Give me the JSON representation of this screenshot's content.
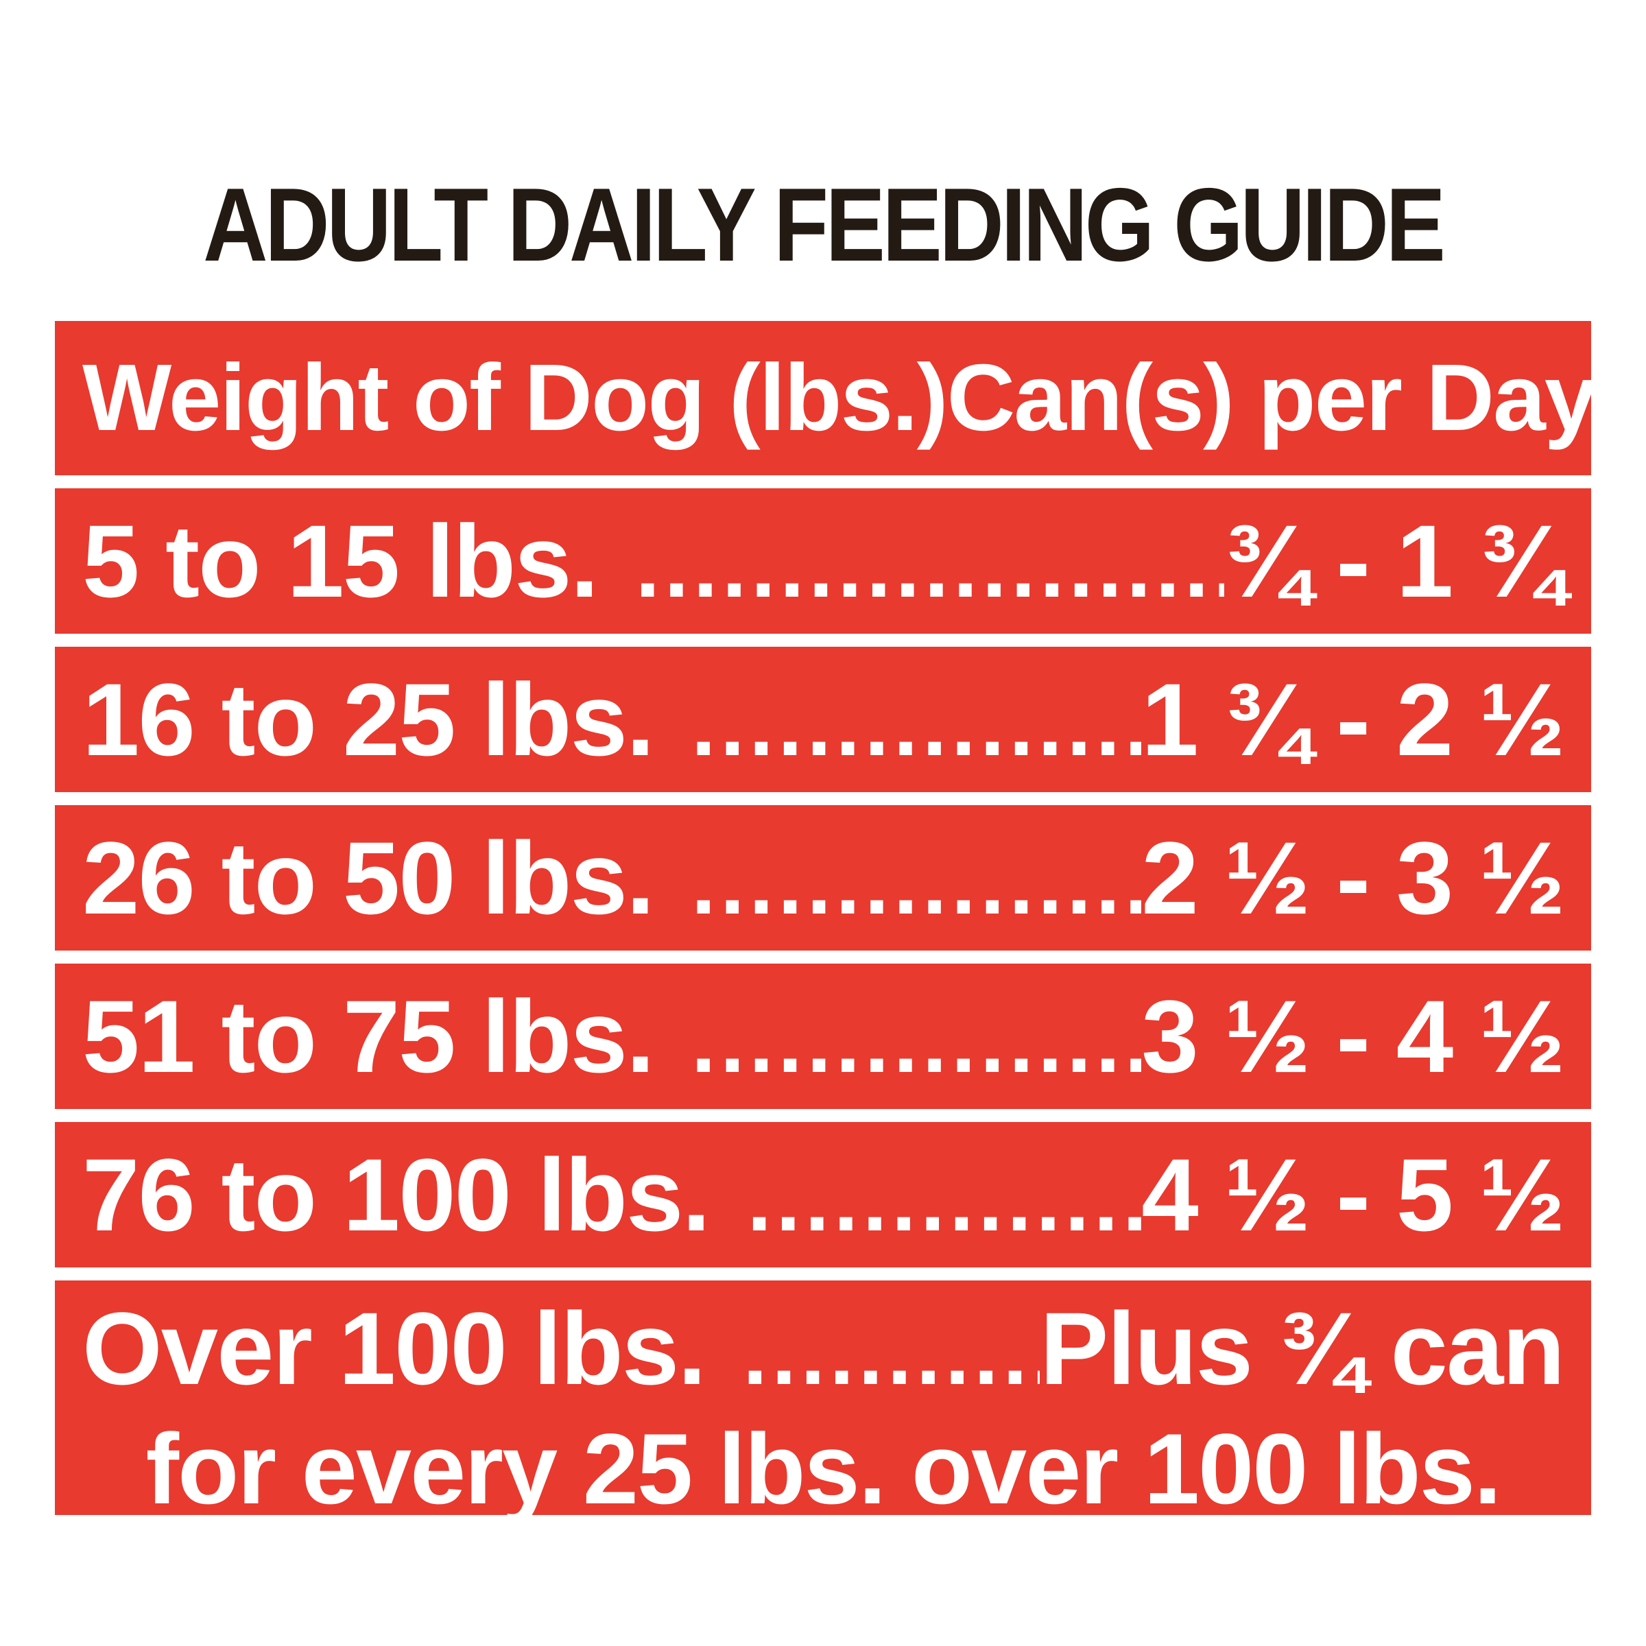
{
  "label": {
    "title": "ADULT DAILY FEEDING GUIDE"
  },
  "table": {
    "header": {
      "weight_col": "Weight of Dog (lbs.)",
      "cans_col": "Can(s) per Day"
    },
    "rows": [
      {
        "weight": "5 to 15 lbs.",
        "leader": "............................",
        "cans": "¾ - 1 ¾"
      },
      {
        "weight": "16 to 25 lbs.",
        "leader": "............................",
        "cans": "1 ¾ - 2 ½"
      },
      {
        "weight": "26 to 50 lbs.",
        "leader": "............................",
        "cans": "2 ½ - 3 ½"
      },
      {
        "weight": "51 to 75 lbs.",
        "leader": "............................",
        "cans": "3 ½ - 4 ½"
      },
      {
        "weight": "76 to 100 lbs.",
        "leader": "............................",
        "cans": "4 ½ - 5 ½"
      },
      {
        "weight": "Over 100 lbs.",
        "leader": "............................",
        "cans": "Plus ¾ can",
        "note": "for every 25 lbs. over 100 lbs."
      }
    ]
  },
  "colors": {
    "band_red": "#e83a2f",
    "title_color": "#231a13",
    "text_on_red": "#ffffff",
    "page_background": "#ffffff"
  }
}
